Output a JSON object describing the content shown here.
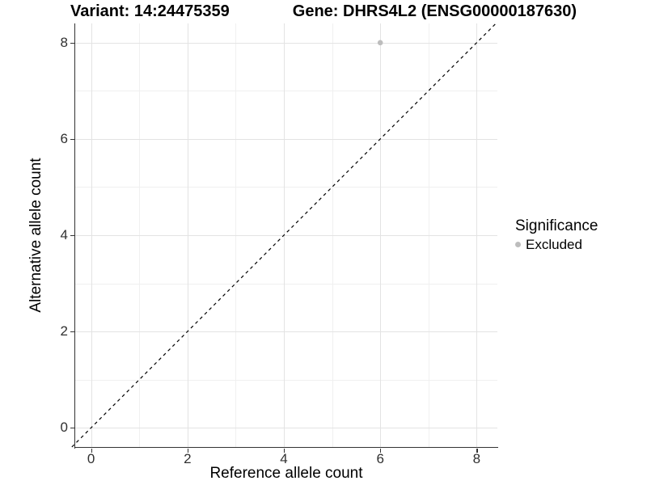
{
  "chart_data": {
    "type": "scatter",
    "title_left": "Variant: 14:24475359",
    "title_right": "Gene: DHRS4L2 (ENSG00000187630)",
    "xlabel": "Reference allele count",
    "ylabel": "Alternative allele count",
    "xlim": [
      -0.33,
      8.43
    ],
    "ylim": [
      -0.4,
      8.4
    ],
    "xticks": [
      0,
      2,
      4,
      6,
      8
    ],
    "yticks": [
      0,
      2,
      4,
      6,
      8
    ],
    "xticks_minor": [
      1,
      3,
      5,
      7
    ],
    "yticks_minor": [
      1,
      3,
      5,
      7
    ],
    "grid": true,
    "identity_line": {
      "style": "dashed",
      "color": "#000000"
    },
    "series": [
      {
        "name": "Excluded",
        "color": "#bdbdbd",
        "points": [
          [
            6,
            8
          ]
        ]
      }
    ],
    "legend": {
      "title": "Significance",
      "position": "right",
      "entries": [
        {
          "label": "Excluded",
          "color": "#bdbdbd"
        }
      ]
    }
  },
  "colors": {
    "background": "#ffffff",
    "grid_major": "#e3e3e3",
    "grid_minor": "#f0f0f0",
    "axis_line": "#333333",
    "tick_mark": "#333333",
    "tick_label": "#303030",
    "title_text": "#000000",
    "point": "#bdbdbd"
  }
}
